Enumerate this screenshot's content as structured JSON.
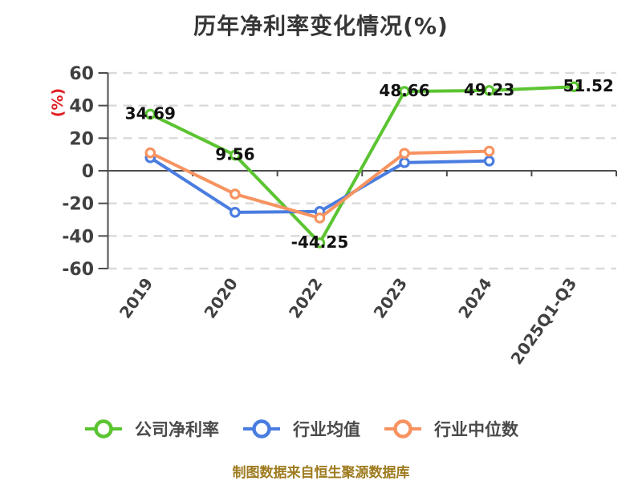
{
  "title": "历年净利率变化情况(%)",
  "footer": "制图数据来自恒生聚源数据库",
  "colors": {
    "title": "#363636",
    "axis": "#4d4d4d",
    "grid": "#d9d9d9",
    "tick_label": "#404040",
    "data_label": "#111111",
    "unit_label": "#e01f26",
    "footer": "#9e7b1e",
    "marker_fill": "#ffffff"
  },
  "chart_data": {
    "type": "line",
    "title": "历年净利率变化情况(%)",
    "ylabel": "(%)",
    "xlabel": "",
    "categories": [
      "2019",
      "2020",
      "2022",
      "2023",
      "2024",
      "2025Q1-Q3"
    ],
    "series": [
      {
        "name": "公司净利率",
        "color": "#5bc431",
        "values": [
          34.69,
          9.56,
          -44.25,
          48.66,
          49.23,
          51.52
        ],
        "labels": [
          "34.69",
          "9.56",
          "-44.25",
          "48.66",
          "49.23",
          "51.52"
        ]
      },
      {
        "name": "行业均值",
        "color": "#4a7de0",
        "values": [
          8,
          -25.5,
          -25,
          5,
          6,
          null
        ],
        "labels": null
      },
      {
        "name": "行业中位数",
        "color": "#f79360",
        "values": [
          11,
          -14.3,
          -29,
          10.7,
          12,
          null
        ],
        "labels": null
      }
    ],
    "ylim": [
      -60,
      60
    ],
    "yticks": [
      60,
      40,
      20,
      0,
      -20,
      -40,
      -60
    ],
    "grid": "dashed",
    "legend_position": "bottom"
  }
}
